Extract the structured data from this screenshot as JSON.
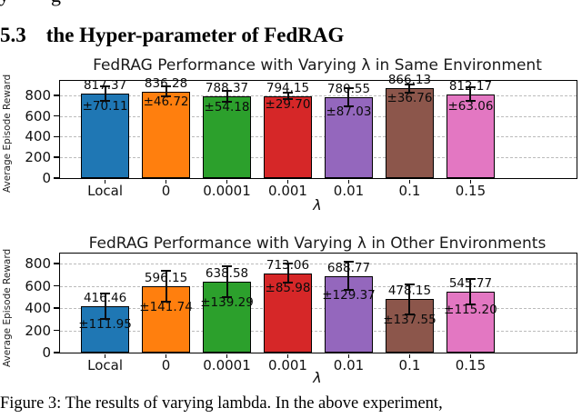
{
  "page": {
    "cut_line_fragments": [
      {
        "char": "y",
        "x": -1
      },
      {
        "char": "g",
        "x": 56
      }
    ],
    "heading": {
      "number": "5.3",
      "text": "the Hyper-parameter of FedRAG"
    },
    "caption": "Figure 3: The results of varying lambda. In the above experiment,"
  },
  "chart_data": [
    {
      "type": "bar",
      "title": "FedRAG Performance with Varying λ in Same Environment",
      "xlabel": "λ",
      "ylabel": "Average Episode Reward",
      "categories": [
        "Local",
        "0",
        "0.0001",
        "0.001",
        "0.01",
        "0.1",
        "0.15"
      ],
      "values": [
        817.37,
        836.28,
        788.37,
        794.15,
        780.55,
        866.13,
        812.17
      ],
      "errors": [
        70.11,
        46.72,
        54.18,
        29.7,
        87.03,
        36.76,
        63.06
      ],
      "value_labels": [
        "817.37",
        "836.28",
        "788.37",
        "794.15",
        "780.55",
        "866.13",
        "812.17"
      ],
      "error_labels": [
        "±70.11",
        "±46.72",
        "±54.18",
        "±29.70",
        "±87.03",
        "±36.76",
        "±63.06"
      ],
      "bar_colors": [
        "#1f77b4",
        "#ff7f0e",
        "#2ca02c",
        "#d62728",
        "#9467bd",
        "#8c564b",
        "#e377c2"
      ],
      "yticks": [
        0,
        200,
        400,
        600,
        800
      ],
      "ylim": [
        0,
        940
      ],
      "grid": "horizontal-dashed",
      "legend": "none"
    },
    {
      "type": "bar",
      "title": "FedRAG Performance with Varying λ in Other Environments",
      "xlabel": "λ",
      "ylabel": "Average Episode Reward",
      "categories": [
        "Local",
        "0",
        "0.0001",
        "0.001",
        "0.01",
        "0.1",
        "0.15"
      ],
      "values": [
        416.46,
        596.15,
        638.58,
        713.06,
        688.77,
        478.15,
        545.77
      ],
      "errors": [
        111.95,
        141.74,
        139.29,
        85.98,
        129.37,
        137.55,
        115.2
      ],
      "value_labels": [
        "416.46",
        "596.15",
        "638.58",
        "713.06",
        "688.77",
        "478.15",
        "545.77"
      ],
      "error_labels": [
        "±111.95",
        "±141.74",
        "±139.29",
        "±85.98",
        "±129.37",
        "±137.55",
        "±115.20"
      ],
      "bar_colors": [
        "#1f77b4",
        "#ff7f0e",
        "#2ca02c",
        "#d62728",
        "#9467bd",
        "#8c564b",
        "#e377c2"
      ],
      "yticks": [
        0,
        200,
        400,
        600,
        800
      ],
      "ylim": [
        0,
        890
      ],
      "grid": "horizontal-dashed",
      "legend": "none"
    }
  ]
}
